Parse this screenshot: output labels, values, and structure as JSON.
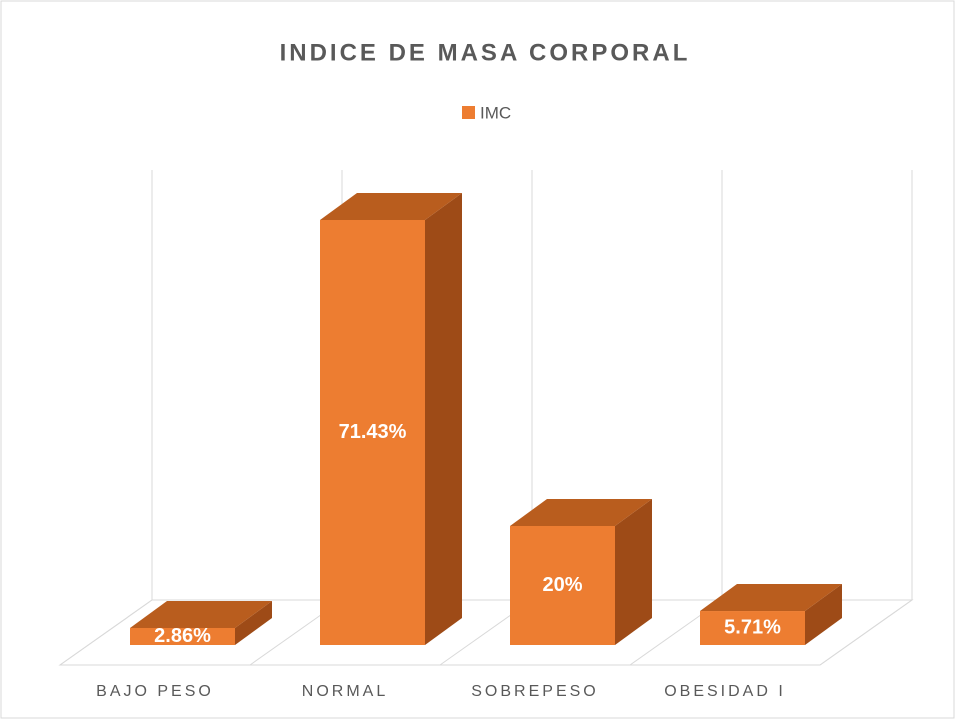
{
  "chart_data": {
    "type": "bar3d",
    "title": "INDICE DE MASA CORPORAL",
    "categories": [
      "BAJO PESO",
      "NORMAL",
      "SOBREPESO",
      "OBESIDAD I"
    ],
    "series": [
      {
        "name": "IMC",
        "color": "#ed7d31",
        "values": [
          2.86,
          71.43,
          20,
          5.71
        ],
        "value_labels": [
          "2.86%",
          "71.43%",
          "20%",
          "5.71%"
        ]
      }
    ]
  }
}
